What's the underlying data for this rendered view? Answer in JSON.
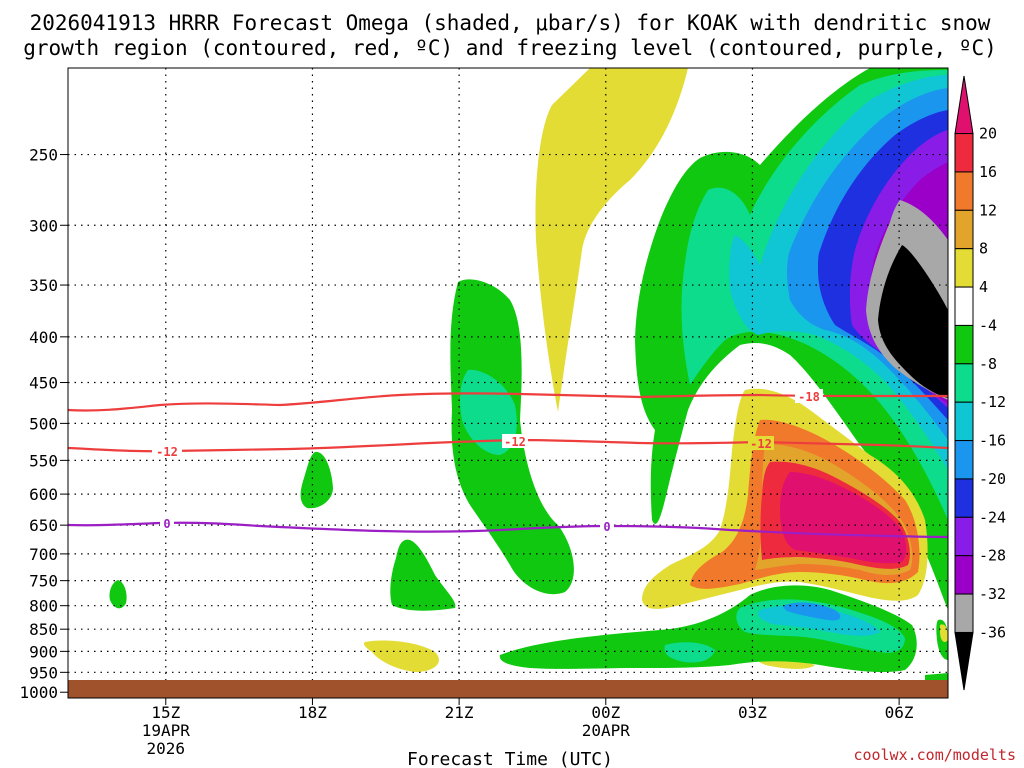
{
  "title": {
    "line1": "2026041913 HRRR Forecast Omega (shaded, μbar/s) for KOAK with dendritic snow",
    "line2": "growth region (contoured, red, ºC) and freezing level (contoured, purple, ºC)"
  },
  "credit": "coolwx.com/modelts",
  "chart_data": {
    "type": "heatmap",
    "title": "2026041913 HRRR Forecast Omega (shaded, μbar/s) for KOAK with dendritic snow growth region (contoured, red, ºC) and freezing level (contoured, purple, ºC)",
    "xlabel": "Forecast Time (UTC)",
    "ylabel": "",
    "x_range_hours_utc": [
      13,
      7
    ],
    "x_ticks": [
      {
        "label": "15Z",
        "sub": [
          "19APR",
          "2026"
        ]
      },
      {
        "label": "18Z",
        "sub": []
      },
      {
        "label": "21Z",
        "sub": []
      },
      {
        "label": "00Z",
        "sub": [
          "20APR"
        ]
      },
      {
        "label": "03Z",
        "sub": []
      },
      {
        "label": "06Z",
        "sub": []
      }
    ],
    "y_ticks_hpa": [
      "250",
      "300",
      "350",
      "400",
      "450",
      "500",
      "550",
      "600",
      "650",
      "700",
      "750",
      "800",
      "850",
      "900",
      "950",
      "1000"
    ],
    "y_scale": "log-pressure, reversed",
    "y_range_hpa": [
      200,
      1015
    ],
    "grid": "dotted",
    "colorbar": {
      "labels": [
        "20",
        "16",
        "12",
        "8",
        "4",
        "-4",
        "-8",
        "-12",
        "-16",
        "-20",
        "-24",
        "-28",
        "-32",
        "-36"
      ],
      "colors": [
        "#e0106f",
        "#ee2a3e",
        "#f0792c",
        "#e3a42c",
        "#e3dc34",
        "#ffffff",
        "#0fc80f",
        "#0ddc8c",
        "#10c6d4",
        "#1b96ee",
        "#1e30e0",
        "#8a1ce8",
        "#9a00c8",
        "#a8a8a8",
        "#000000"
      ]
    },
    "contours": [
      {
        "name": "dendritic snow growth region",
        "color": "#ee3d3d",
        "levels": [
          "-18",
          "-12"
        ]
      },
      {
        "name": "freezing level",
        "color": "#9b1fc4",
        "levels": [
          "0"
        ]
      }
    ],
    "contour_labels": [
      "-12",
      "-12",
      "-12",
      "-18",
      "0",
      "0"
    ]
  }
}
